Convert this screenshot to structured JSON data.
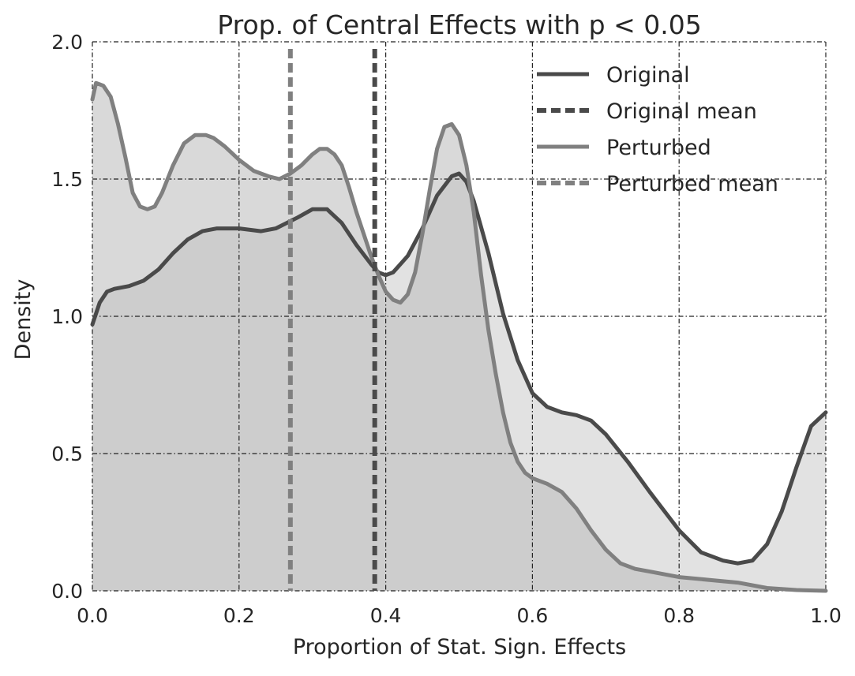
{
  "chart_data": {
    "type": "area",
    "title": "Prop. of Central Effects with p < 0.05",
    "xlabel": "Proportion of Stat. Sign. Effects",
    "ylabel": "Density",
    "xlim": [
      0.0,
      1.0
    ],
    "ylim": [
      0.0,
      2.0
    ],
    "xticks": [
      0.0,
      0.2,
      0.4,
      0.6,
      0.8,
      1.0
    ],
    "yticks": [
      0.0,
      0.5,
      1.0,
      1.5,
      2.0
    ],
    "xtick_labels": [
      "0.0",
      "0.2",
      "0.4",
      "0.6",
      "0.8",
      "1.0"
    ],
    "ytick_labels": [
      "0.0",
      "0.5",
      "1.0",
      "1.5",
      "2.0"
    ],
    "grid": true,
    "grid_style": "dash-dot",
    "legend_position": "top-right",
    "series": [
      {
        "name": "Original",
        "style": "solid",
        "color": "#4a4a4a",
        "fill": "#cfcfcf",
        "x": [
          0.0,
          0.01,
          0.02,
          0.03,
          0.05,
          0.07,
          0.09,
          0.11,
          0.13,
          0.15,
          0.17,
          0.2,
          0.23,
          0.25,
          0.28,
          0.3,
          0.32,
          0.34,
          0.36,
          0.38,
          0.39,
          0.4,
          0.41,
          0.43,
          0.45,
          0.47,
          0.49,
          0.5,
          0.51,
          0.52,
          0.54,
          0.56,
          0.58,
          0.6,
          0.62,
          0.64,
          0.66,
          0.68,
          0.7,
          0.73,
          0.76,
          0.8,
          0.83,
          0.86,
          0.88,
          0.9,
          0.92,
          0.94,
          0.96,
          0.98,
          1.0
        ],
        "y": [
          0.97,
          1.05,
          1.09,
          1.1,
          1.11,
          1.13,
          1.17,
          1.23,
          1.28,
          1.31,
          1.32,
          1.32,
          1.31,
          1.32,
          1.36,
          1.39,
          1.39,
          1.34,
          1.26,
          1.19,
          1.16,
          1.15,
          1.16,
          1.22,
          1.32,
          1.44,
          1.51,
          1.52,
          1.49,
          1.42,
          1.23,
          1.01,
          0.84,
          0.72,
          0.67,
          0.65,
          0.64,
          0.62,
          0.57,
          0.47,
          0.36,
          0.22,
          0.14,
          0.11,
          0.1,
          0.11,
          0.17,
          0.29,
          0.45,
          0.6,
          0.65
        ]
      },
      {
        "name": "Original mean",
        "style": "dashed",
        "color": "#4a4a4a",
        "x_value": 0.385
      },
      {
        "name": "Perturbed",
        "style": "solid",
        "color": "#808080",
        "fill": "#bfbfbf",
        "x": [
          0.0,
          0.005,
          0.015,
          0.025,
          0.035,
          0.045,
          0.055,
          0.065,
          0.075,
          0.085,
          0.095,
          0.11,
          0.125,
          0.14,
          0.155,
          0.165,
          0.18,
          0.2,
          0.22,
          0.24,
          0.255,
          0.27,
          0.285,
          0.3,
          0.31,
          0.32,
          0.33,
          0.34,
          0.35,
          0.36,
          0.37,
          0.38,
          0.39,
          0.4,
          0.41,
          0.42,
          0.43,
          0.44,
          0.45,
          0.46,
          0.47,
          0.48,
          0.49,
          0.5,
          0.51,
          0.52,
          0.53,
          0.54,
          0.55,
          0.56,
          0.57,
          0.58,
          0.59,
          0.6,
          0.62,
          0.64,
          0.66,
          0.68,
          0.7,
          0.72,
          0.74,
          0.76,
          0.78,
          0.8,
          0.84,
          0.88,
          0.92,
          0.96,
          1.0
        ],
        "y": [
          1.79,
          1.85,
          1.84,
          1.8,
          1.7,
          1.58,
          1.45,
          1.4,
          1.39,
          1.4,
          1.45,
          1.55,
          1.63,
          1.66,
          1.66,
          1.65,
          1.62,
          1.57,
          1.53,
          1.51,
          1.5,
          1.52,
          1.55,
          1.59,
          1.61,
          1.61,
          1.59,
          1.55,
          1.47,
          1.38,
          1.3,
          1.22,
          1.15,
          1.09,
          1.06,
          1.05,
          1.08,
          1.16,
          1.3,
          1.46,
          1.61,
          1.69,
          1.7,
          1.66,
          1.55,
          1.38,
          1.15,
          0.95,
          0.79,
          0.65,
          0.54,
          0.47,
          0.43,
          0.41,
          0.39,
          0.36,
          0.3,
          0.22,
          0.15,
          0.1,
          0.08,
          0.07,
          0.06,
          0.05,
          0.04,
          0.03,
          0.01,
          0.003,
          0.0
        ]
      },
      {
        "name": "Perturbed mean",
        "style": "dashed",
        "color": "#808080",
        "x_value": 0.27
      }
    ]
  }
}
